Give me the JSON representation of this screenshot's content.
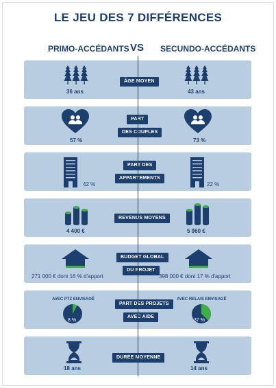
{
  "title": "LE JEU DES 7 DIFFÉRENCES",
  "header": {
    "left": "PRIMO-ACCÉDANTS",
    "vs": "VS",
    "right": "SECUNDO-ACCÉDANTS"
  },
  "rows": [
    {
      "label": [
        "ÂGE MOYEN"
      ],
      "left": "36 ans",
      "right": "43 ans",
      "icon": "trees-icon"
    },
    {
      "label": [
        "PART",
        "DES COUPLES"
      ],
      "left": "57 %",
      "right": "73 %",
      "icon": "heart-couple-icon"
    },
    {
      "label": [
        "PART DES",
        "APPARTEMENTS"
      ],
      "left": "42 %",
      "right": "22 %",
      "icon": "building-icon"
    },
    {
      "label": [
        "REVENUS MOYENS"
      ],
      "left": "4 400 €",
      "right": "5 960 €",
      "icon": "coins-stack-icon"
    },
    {
      "label": [
        "BUDGET GLOBAL",
        "DU PROJET"
      ],
      "left": "271 000 € dont 16 % d'apport",
      "right": "398 000 € dont 17 % d'apport",
      "icon": "house-icon"
    },
    {
      "label": [
        "PART DES PROJETS",
        "AVEC AIDE"
      ],
      "left": "8 %",
      "right": "37 %",
      "left_caption": "AVEC PTZ ENVISAGÉ",
      "right_caption": "AVEC RELAIS ENVISAGÉ",
      "left_fraction": 0.08,
      "right_fraction": 0.37,
      "icon": "pie-icon"
    },
    {
      "label": [
        "DURÉE MOYENNE"
      ],
      "left": "18 ans",
      "right": "14 ans",
      "icon": "hourglass-icon"
    }
  ],
  "colors": {
    "navy": "#1d3f6e",
    "row_bg": "#b9cde1",
    "green": "#3fae49"
  }
}
